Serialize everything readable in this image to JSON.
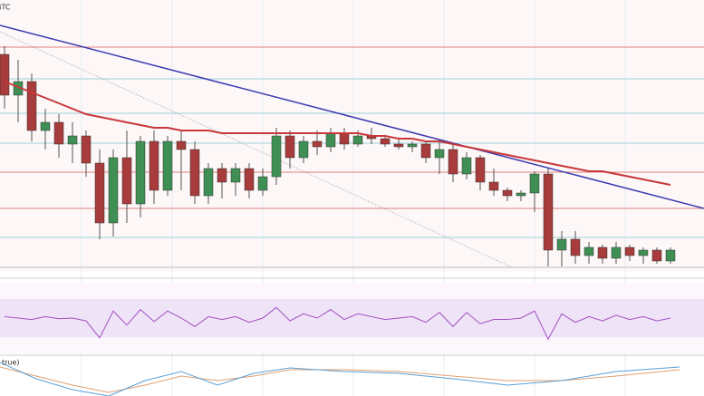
{
  "chart_data": {
    "type": "candlestick",
    "title": "BTC",
    "indicator_label": "true)",
    "ylim": [
      0,
      100
    ],
    "up_color": "#3f8f55",
    "down_color": "#a83b3b",
    "open": [
      80,
      65,
      70,
      52,
      55,
      47,
      50,
      40,
      18,
      42,
      25,
      48,
      30,
      48,
      45,
      28,
      38,
      33,
      38,
      30,
      35,
      50,
      42,
      48,
      46,
      51,
      47,
      50,
      49,
      47,
      46,
      47,
      42,
      45,
      36,
      42,
      33,
      30,
      28,
      29,
      36,
      8,
      12,
      6,
      9,
      5,
      9,
      6,
      8,
      4
    ],
    "high": [
      83,
      78,
      73,
      60,
      58,
      55,
      52,
      45,
      45,
      52,
      50,
      52,
      50,
      52,
      48,
      40,
      40,
      40,
      40,
      38,
      53,
      52,
      50,
      52,
      53,
      53,
      52,
      53,
      50,
      49,
      48,
      48,
      48,
      47,
      44,
      43,
      38,
      31,
      30,
      37,
      38,
      15,
      15,
      11,
      10,
      11,
      10,
      9,
      9,
      9
    ],
    "low": [
      60,
      55,
      48,
      45,
      42,
      40,
      35,
      12,
      13,
      18,
      20,
      25,
      28,
      30,
      25,
      25,
      27,
      28,
      27,
      28,
      32,
      38,
      40,
      43,
      44,
      45,
      46,
      47,
      46,
      45,
      44,
      40,
      36,
      33,
      34,
      30,
      28,
      26,
      26,
      22,
      2,
      2,
      3,
      3,
      3,
      3,
      4,
      3,
      3,
      3
    ],
    "close": [
      65,
      70,
      52,
      55,
      47,
      50,
      40,
      18,
      42,
      25,
      48,
      30,
      48,
      45,
      28,
      38,
      33,
      38,
      30,
      35,
      50,
      42,
      48,
      46,
      51,
      47,
      50,
      49,
      47,
      46,
      47,
      42,
      45,
      36,
      42,
      33,
      30,
      28,
      29,
      36,
      8,
      12,
      6,
      9,
      5,
      9,
      6,
      8,
      4,
      8
    ],
    "moving_average": {
      "color": "#c8383a",
      "values": [
        70,
        68,
        66,
        64,
        62,
        60,
        58,
        57,
        56,
        55,
        54,
        53,
        53,
        52,
        52,
        52,
        51,
        51,
        51,
        51,
        51,
        51,
        51,
        51,
        51,
        51,
        51,
        50,
        50,
        49,
        49,
        48,
        48,
        47,
        46,
        45,
        44,
        43,
        42,
        41,
        40,
        39,
        38,
        37,
        37,
        36,
        35,
        34,
        33,
        32
      ]
    },
    "rsi": {
      "color": "#a050c0",
      "ylim": [
        0,
        100
      ],
      "values": [
        52,
        50,
        48,
        52,
        49,
        50,
        46,
        22,
        60,
        40,
        62,
        45,
        60,
        50,
        38,
        52,
        48,
        52,
        44,
        50,
        65,
        46,
        56,
        50,
        62,
        48,
        56,
        52,
        48,
        50,
        52,
        44,
        58,
        38,
        58,
        42,
        48,
        48,
        50,
        60,
        20,
        56,
        44,
        52,
        46,
        54,
        48,
        52,
        46,
        50
      ]
    }
  }
}
